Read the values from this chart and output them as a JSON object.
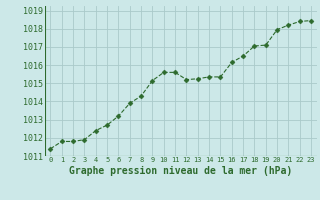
{
  "x": [
    0,
    1,
    2,
    3,
    4,
    5,
    6,
    7,
    8,
    9,
    10,
    11,
    12,
    13,
    14,
    15,
    16,
    17,
    18,
    19,
    20,
    21,
    22,
    23
  ],
  "y": [
    1011.4,
    1011.8,
    1011.8,
    1011.9,
    1012.4,
    1012.7,
    1013.2,
    1013.9,
    1014.3,
    1015.15,
    1015.6,
    1015.6,
    1015.2,
    1015.25,
    1015.35,
    1015.35,
    1016.15,
    1016.5,
    1017.05,
    1017.1,
    1017.95,
    1018.2,
    1018.4,
    1018.45
  ],
  "line_color": "#2d6a2d",
  "marker_color": "#2d6a2d",
  "bg_color": "#cce8e8",
  "grid_color": "#aacaca",
  "xlabel": "Graphe pression niveau de la mer (hPa)",
  "xlabel_fontsize": 7,
  "ylim": [
    1011.0,
    1019.25
  ],
  "xlim": [
    -0.5,
    23.5
  ],
  "yticks": [
    1011,
    1012,
    1013,
    1014,
    1015,
    1016,
    1017,
    1018,
    1019
  ],
  "xticks": [
    0,
    1,
    2,
    3,
    4,
    5,
    6,
    7,
    8,
    9,
    10,
    11,
    12,
    13,
    14,
    15,
    16,
    17,
    18,
    19,
    20,
    21,
    22,
    23
  ],
  "ytick_fontsize": 6,
  "xtick_fontsize": 5
}
